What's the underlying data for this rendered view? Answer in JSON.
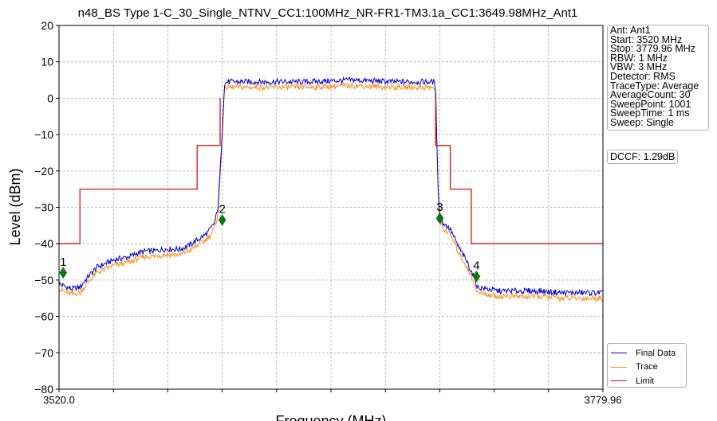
{
  "chart_data": {
    "type": "line",
    "title": "n48_BS Type 1-C_30_Single_NTNV_CC1:100MHz_NR-FR1-TM3.1a_CC1:3649.98MHz_Ant1",
    "xlabel": "Frequency (MHz)",
    "ylabel": "Level (dBm)",
    "xlim": [
      3520.0,
      3779.96
    ],
    "ylim": [
      -80,
      20
    ],
    "x_tick_labels": [
      "3520.0",
      "3779.96"
    ],
    "y_ticks": [
      20,
      10,
      0,
      -10,
      -20,
      -30,
      -40,
      -50,
      -60,
      -70,
      -80
    ],
    "y_tick_labels": [
      "20",
      "10",
      "0",
      "−10",
      "−20",
      "−30",
      "−40",
      "−50",
      "−60",
      "−70",
      "−80"
    ],
    "grid": true,
    "legend_position": "bottom-right",
    "series": [
      {
        "name": "Final Data",
        "color": "#0000cc",
        "x": [
          3520.0,
          3522.0,
          3526.0,
          3530.0,
          3534.0,
          3538.0,
          3542.0,
          3546.0,
          3550.0,
          3554.0,
          3558.0,
          3562.0,
          3566.0,
          3570.0,
          3574.0,
          3578.0,
          3582.0,
          3586.0,
          3590.0,
          3592.5,
          3594.5,
          3596.0,
          3597.5,
          3599.0,
          3600.0,
          3620.0,
          3640.0,
          3660.0,
          3680.0,
          3690.0,
          3699.0,
          3700.0,
          3700.5,
          3701.5,
          3703.0,
          3705.0,
          3707.0,
          3709.0,
          3711.0,
          3713.0,
          3715.0,
          3717.0,
          3719.0,
          3720.0,
          3730.0,
          3740.0,
          3750.0,
          3760.0,
          3770.0,
          3779.96
        ],
        "values": [
          -51,
          -51.5,
          -52.5,
          -52,
          -49,
          -46.5,
          -45.5,
          -44.5,
          -44,
          -43.5,
          -42.5,
          -42,
          -42,
          -41.5,
          -41.5,
          -41.5,
          -40.5,
          -39,
          -37.5,
          -36,
          -34,
          -30,
          -15,
          3.5,
          4.5,
          4.5,
          4.5,
          5,
          4.5,
          4.5,
          4.5,
          3,
          -10,
          -30,
          -34,
          -35,
          -36,
          -38.5,
          -41,
          -43,
          -45,
          -47.5,
          -50,
          -52,
          -53,
          -53,
          -53,
          -53.5,
          -53.5,
          -53.5
        ]
      },
      {
        "name": "Trace",
        "color": "#ff8c1a",
        "x": [
          3520.0,
          3522.0,
          3526.0,
          3530.0,
          3534.0,
          3538.0,
          3542.0,
          3546.0,
          3550.0,
          3554.0,
          3558.0,
          3562.0,
          3566.0,
          3570.0,
          3574.0,
          3578.0,
          3582.0,
          3586.0,
          3590.0,
          3592.5,
          3594.5,
          3596.0,
          3597.5,
          3599.0,
          3600.0,
          3620.0,
          3640.0,
          3660.0,
          3680.0,
          3690.0,
          3699.0,
          3700.0,
          3700.5,
          3701.5,
          3703.0,
          3705.0,
          3707.0,
          3709.0,
          3711.0,
          3713.0,
          3715.0,
          3717.0,
          3719.0,
          3720.0,
          3730.0,
          3740.0,
          3750.0,
          3760.0,
          3770.0,
          3779.96
        ],
        "values": [
          -52.5,
          -53,
          -54,
          -53.5,
          -50.5,
          -48,
          -47,
          -46,
          -45.5,
          -45,
          -44,
          -43.5,
          -43.5,
          -43,
          -43,
          -43,
          -42,
          -40.5,
          -39,
          -37.5,
          -35.5,
          -31.5,
          -16.5,
          2,
          3,
          3,
          3,
          3.5,
          3,
          3,
          3,
          1.5,
          -11.5,
          -31.5,
          -35.5,
          -36.5,
          -37.5,
          -40,
          -42.5,
          -44.5,
          -46.5,
          -49,
          -51.5,
          -53.5,
          -54.5,
          -54.5,
          -54.5,
          -55,
          -55,
          -55
        ]
      },
      {
        "name": "Limit",
        "color": "#e01010",
        "x": [
          3520.0,
          3530.0,
          3530.0,
          3586.0,
          3586.0,
          3597.0,
          3597.0,
          3700.0,
          3700.0,
          3707.0,
          3707.0,
          3717.0,
          3717.0,
          3779.96
        ],
        "values": [
          -40,
          -40,
          -25,
          -25,
          -13,
          -13,
          0,
          0,
          -13,
          -13,
          -25,
          -25,
          -40,
          -40
        ],
        "gaps_after_index": [
          6
        ]
      }
    ],
    "markers": [
      {
        "label": "1",
        "x": 3522.0,
        "y": -48
      },
      {
        "label": "2",
        "x": 3598.0,
        "y": -33.5
      },
      {
        "label": "3",
        "x": 3702.0,
        "y": -33.0
      },
      {
        "label": "4",
        "x": 3719.5,
        "y": -49.0
      }
    ],
    "info_lines": [
      "Ant: Ant1",
      "Start: 3520 MHz",
      "Stop: 3779.96 MHz",
      "RBW: 1 MHz",
      "VBW: 3 MHz",
      "Detector: RMS",
      "TraceType: Average",
      "AverageCount: 30",
      "SweepPoint: 1001",
      "SweepTime: 1 ms",
      "Sweep: Single"
    ],
    "dccf": "DCCF: 1.29dB"
  }
}
